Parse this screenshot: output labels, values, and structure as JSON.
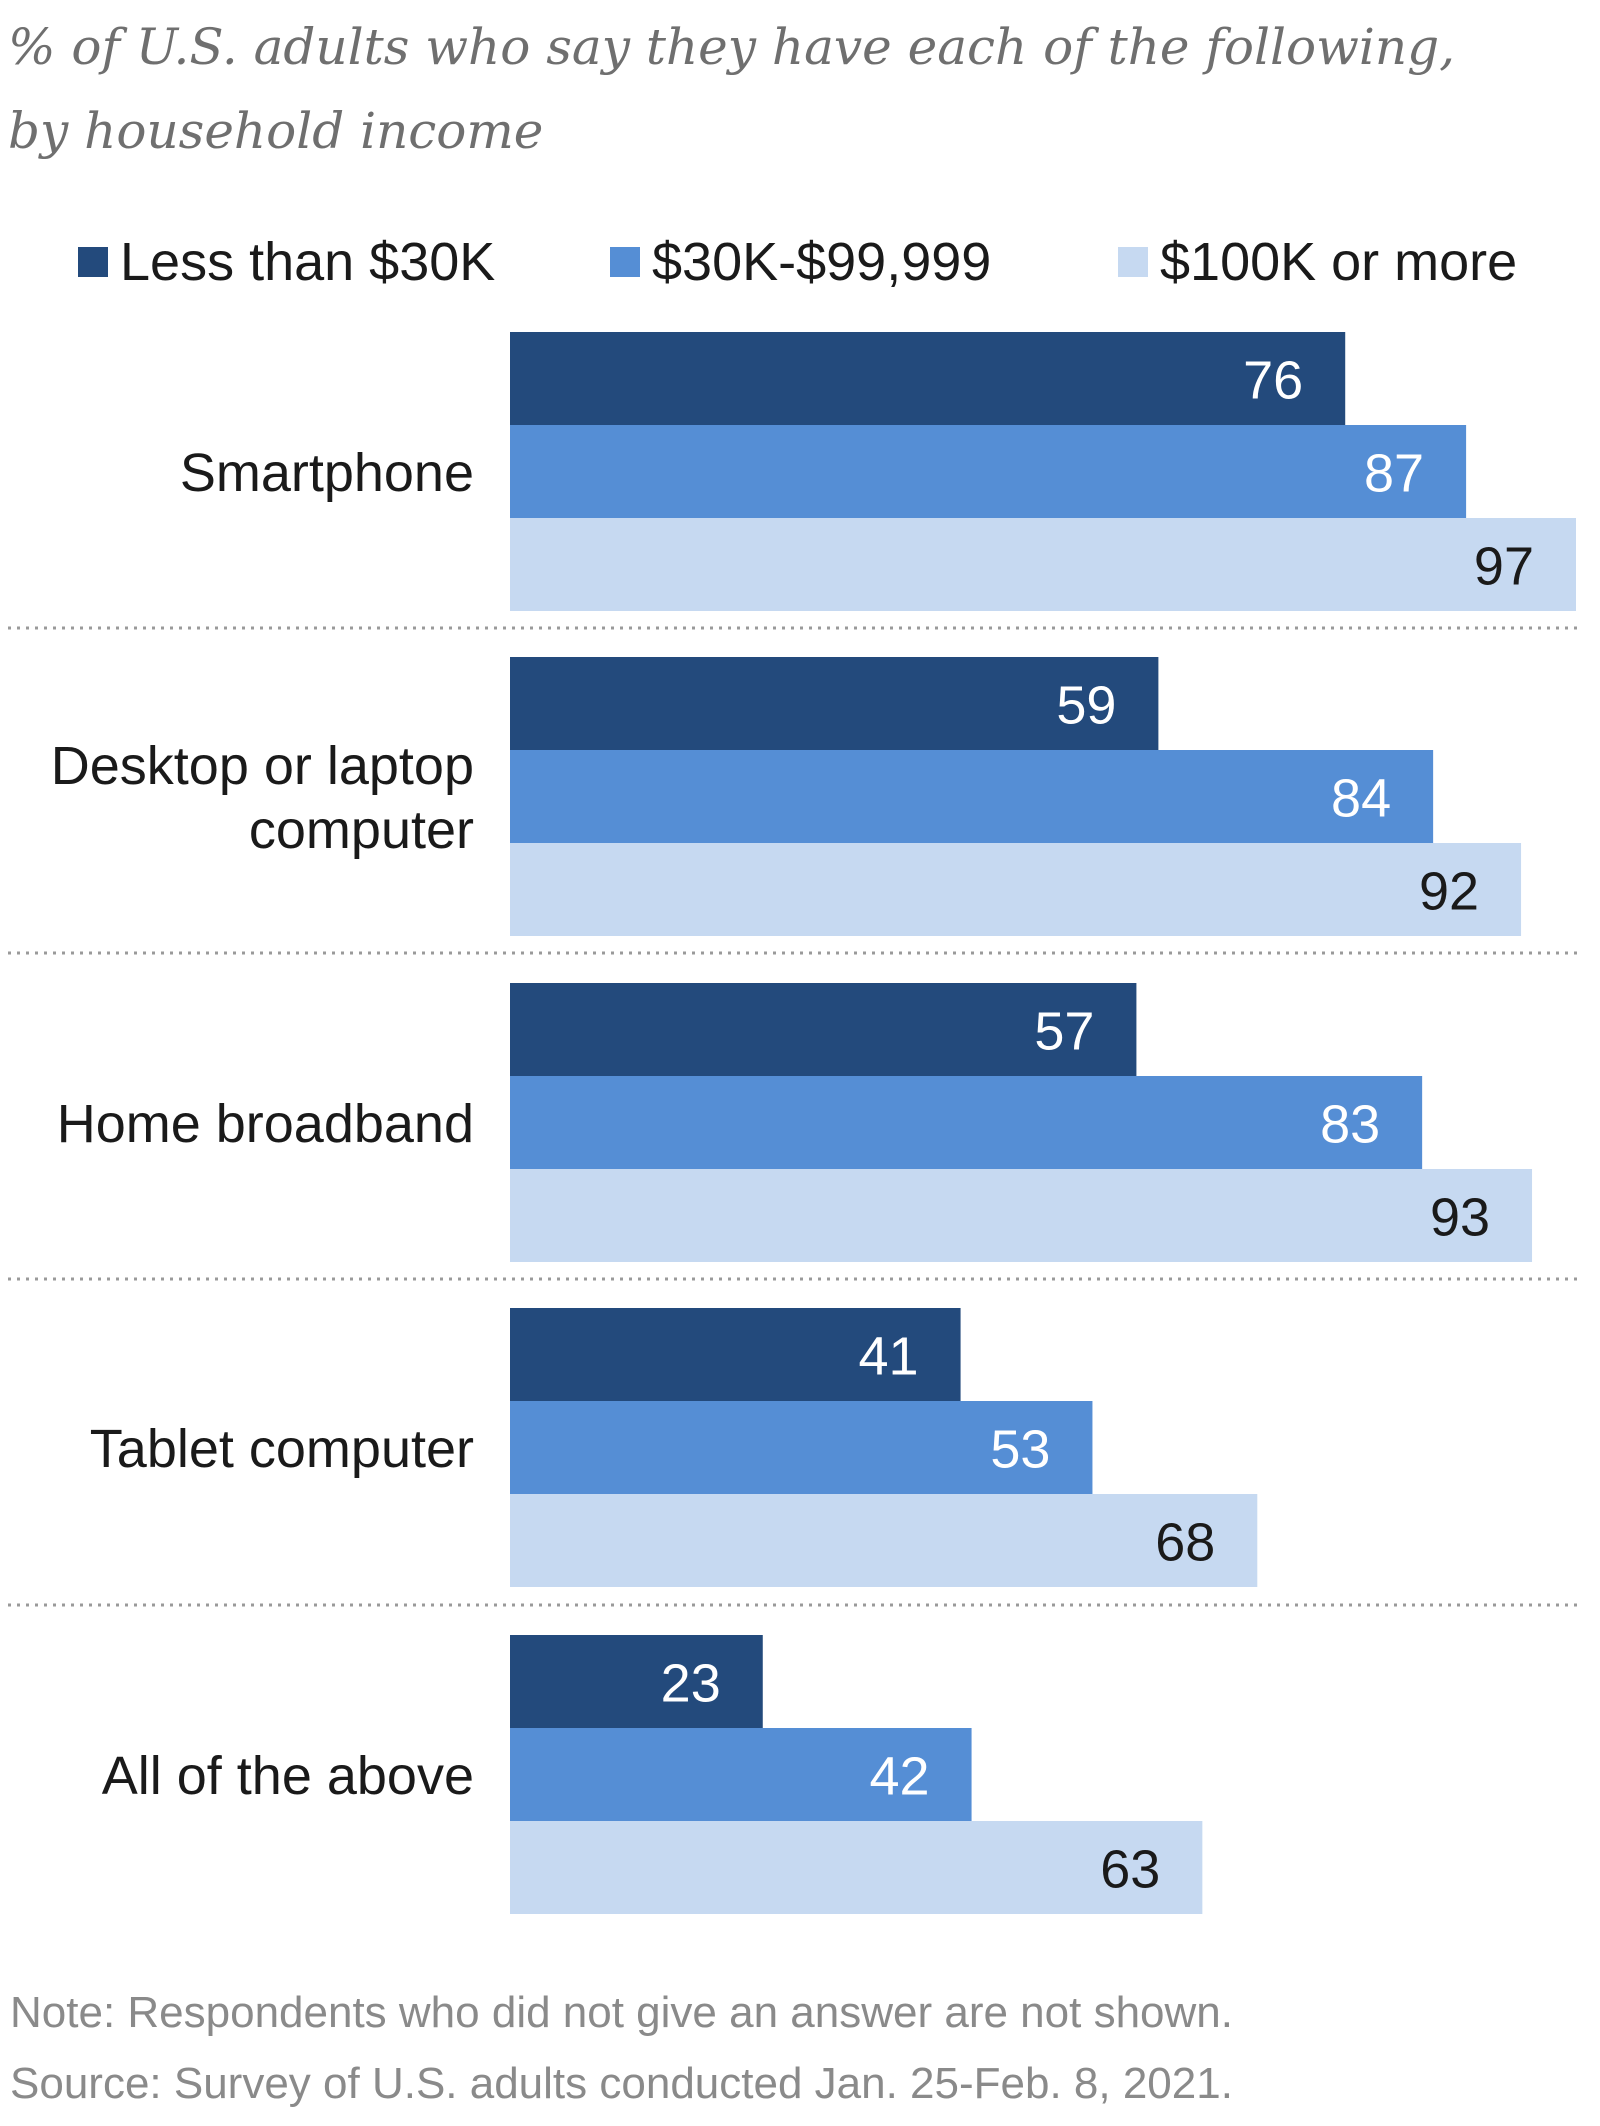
{
  "chart_data": {
    "type": "bar",
    "orientation": "horizontal",
    "subtitle_lines": [
      "% of U.S. adults who say they have each of the following,",
      "by household income"
    ],
    "categories": [
      [
        "Smartphone"
      ],
      [
        "Desktop or laptop",
        "computer"
      ],
      [
        "Home broadband"
      ],
      [
        "Tablet computer"
      ],
      [
        "All of the above"
      ]
    ],
    "series": [
      {
        "name": "Less than $30K",
        "color": "#234a7c",
        "label_color": "#ffffff",
        "values": [
          76,
          59,
          57,
          41,
          23
        ]
      },
      {
        "name": "$30K-$99,999",
        "color": "#558ed5",
        "label_color": "#ffffff",
        "values": [
          87,
          84,
          83,
          53,
          42
        ]
      },
      {
        "name": "$100K or more",
        "color": "#c6d9f1",
        "label_color": "#1a1a1a",
        "values": [
          97,
          92,
          93,
          68,
          63
        ]
      }
    ],
    "xlim": [
      0,
      100
    ],
    "legend_position": "top",
    "grid": false,
    "separators": "dotted"
  },
  "footer": {
    "note": "Note: Respondents who did not give an answer are not shown.",
    "source": "Source: Survey of U.S. adults conducted Jan. 25-Feb. 8, 2021."
  }
}
